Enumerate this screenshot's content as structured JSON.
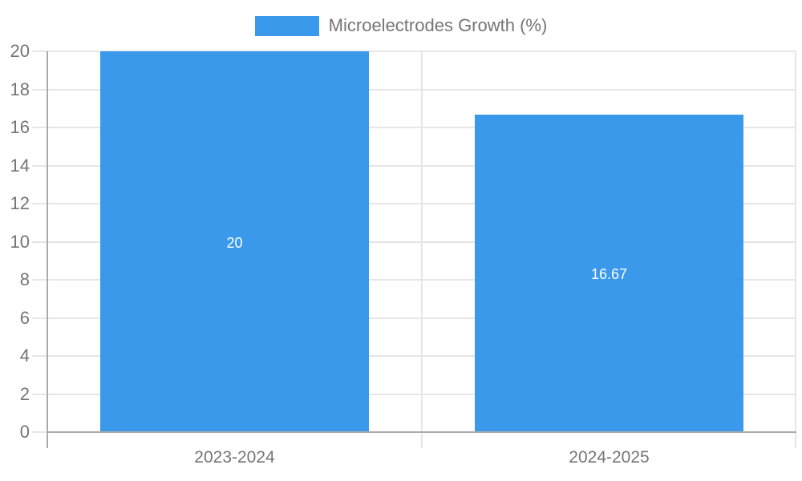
{
  "legend": {
    "label": "Microelectrodes Growth (%)"
  },
  "colors": {
    "bar": "#3b99ec",
    "axis_text": "#757575",
    "bar_label_text": "#ffffff",
    "gridline": "#e6e6e6",
    "axis_line": "#ababab",
    "background": "#ffffff"
  },
  "chart_data": {
    "type": "bar",
    "title": "",
    "xlabel": "",
    "ylabel": "",
    "legend_entries": [
      "Microelectrodes Growth (%)"
    ],
    "legend_position": "top-center",
    "categories": [
      "2023-2024",
      "2024-2025"
    ],
    "series": [
      {
        "name": "Microelectrodes Growth (%)",
        "values": [
          20,
          16.67
        ],
        "value_labels": [
          "20",
          "16.67"
        ]
      }
    ],
    "ylim": [
      0,
      20
    ],
    "yticks": [
      0,
      2,
      4,
      6,
      8,
      10,
      12,
      14,
      16,
      18,
      20
    ],
    "grid": true,
    "bar_color": "#3b99ec"
  }
}
